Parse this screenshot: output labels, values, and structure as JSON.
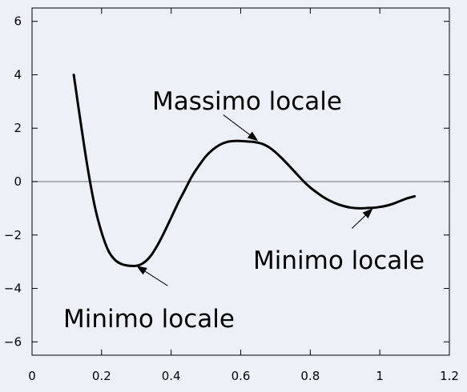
{
  "chart_data": {
    "type": "line",
    "title": "",
    "xlabel": "",
    "ylabel": "",
    "xlim": [
      0,
      1.2
    ],
    "ylim": [
      -6.5,
      6.5
    ],
    "x_ticks": [
      0,
      0.2,
      0.4,
      0.6,
      0.8,
      1,
      1.2
    ],
    "x_tick_labels": [
      "0",
      "0.2",
      "0.4",
      "0.6",
      "0.8",
      "1",
      "1.2"
    ],
    "y_ticks": [
      6,
      4,
      2,
      0,
      -2,
      -4,
      -6
    ],
    "y_tick_labels": [
      "6",
      "4",
      "2",
      "0",
      "−2",
      "−4",
      "−6"
    ],
    "grid": false,
    "zero_line": true,
    "series": [
      {
        "x": [
          0.12,
          0.14,
          0.16,
          0.18,
          0.2,
          0.22,
          0.24,
          0.26,
          0.28,
          0.3,
          0.32,
          0.34,
          0.36,
          0.38,
          0.4,
          0.42,
          0.44,
          0.46,
          0.48,
          0.5,
          0.52,
          0.54,
          0.56,
          0.58,
          0.6,
          0.62,
          0.64,
          0.66,
          0.68,
          0.7,
          0.72,
          0.74,
          0.76,
          0.78,
          0.8,
          0.82,
          0.84,
          0.86,
          0.88,
          0.9,
          0.92,
          0.94,
          0.96,
          0.98,
          1.0,
          1.02,
          1.04,
          1.06,
          1.08,
          1.1
        ],
        "y": [
          4.0,
          2.2,
          0.5,
          -0.9,
          -1.9,
          -2.6,
          -2.95,
          -3.1,
          -3.15,
          -3.15,
          -3.05,
          -2.8,
          -2.4,
          -1.9,
          -1.35,
          -0.8,
          -0.3,
          0.2,
          0.6,
          0.95,
          1.2,
          1.38,
          1.48,
          1.52,
          1.52,
          1.5,
          1.48,
          1.42,
          1.3,
          1.1,
          0.85,
          0.58,
          0.3,
          0.02,
          -0.22,
          -0.42,
          -0.6,
          -0.74,
          -0.85,
          -0.93,
          -0.98,
          -1.0,
          -0.99,
          -0.98,
          -0.95,
          -0.9,
          -0.82,
          -0.72,
          -0.62,
          -0.55
        ]
      }
    ],
    "annotations": [
      {
        "text": "Massimo locale",
        "point": [
          0.65,
          1.52
        ],
        "from": [
          0.55,
          2.5
        ]
      },
      {
        "text": "Minimo locale",
        "point": [
          0.3,
          -3.15
        ],
        "from": [
          0.39,
          -3.9
        ]
      },
      {
        "text": "Minimo locale",
        "point": [
          0.98,
          -1.0
        ],
        "from": [
          0.92,
          -1.75
        ]
      }
    ]
  }
}
